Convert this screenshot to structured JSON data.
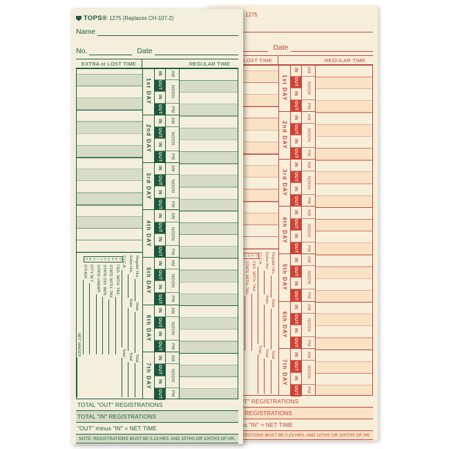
{
  "page": {
    "background": "#ffffff"
  },
  "card_labels": {
    "brand": "TOPS®",
    "form_front": "1275 (Replaces CH-107-2)",
    "form_back": "1275",
    "name_label": "Name",
    "no_label": "No.",
    "date_label": "Date",
    "header_extra": "EXTRA or LOST TIME",
    "header_regular": "REGULAR TIME",
    "in": "IN",
    "out": "OUT",
    "periods": [
      "AM",
      "NOON",
      "PM"
    ],
    "days": [
      "1st DAY",
      "2nd DAY",
      "3rd DAY",
      "4th DAY",
      "5th DAY",
      "6th DAY",
      "7th DAY"
    ],
    "deductions_box": "DEDUCTIONS",
    "deduction_rows": [
      {
        "label": "Regular Hrs.",
        "cols": [
          "Rate",
          "Total"
        ],
        "type": "earnings"
      },
      {
        "label": "Extra Hrs.",
        "cols": [
          "Rate",
          "Total"
        ],
        "type": "earnings"
      },
      {
        "label": "F.I.C.A.",
        "cols": [
          "Total"
        ],
        "type": "fica"
      },
      {
        "label": "FED. WITH. TAX.",
        "cols": [],
        "type": "deduction"
      },
      {
        "label": "STATE WITH. TAX.",
        "cols": [],
        "type": "deduction"
      },
      {
        "label": "STATE DIS. BEN.",
        "cols": [],
        "type": "deduction"
      },
      {
        "label": "STATE UNEMP.",
        "cols": [],
        "type": "deduction"
      },
      {
        "label": "CITY W.T.",
        "cols": [],
        "type": "deduction"
      },
      {
        "label": "OTHER",
        "cols": [],
        "type": "deduction"
      },
      {
        "label": "NET WAGES",
        "cols": [],
        "type": "net"
      }
    ],
    "totals": [
      "TOTAL \"OUT\" REGISTRATIONS",
      "TOTAL \"IN\" REGISTRATIONS",
      "\"OUT\" minus \"IN\" = NET TIME"
    ],
    "note": "NOTE: REGISTRATIONS MUST BE 0.23 HRS. AND 10THS OR 100THS OF HR."
  },
  "themes": {
    "front": {
      "ink": "#1f5b44",
      "line": "#6f9480",
      "bg": "#f3efdc",
      "shade": "#d6dcc5",
      "out_bg": "#1d573f",
      "out_fg": "#f3efdc"
    },
    "back": {
      "ink": "#c2453a",
      "line": "#d4796c",
      "bg": "#f7efda",
      "shade": "#fae2c5",
      "out_bg": "#d04136",
      "out_fg": "#fdf6e7"
    }
  }
}
